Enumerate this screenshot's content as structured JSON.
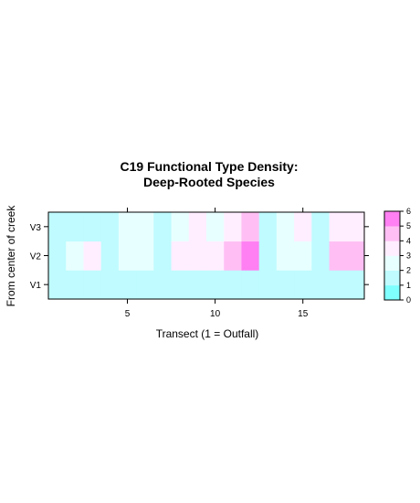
{
  "chart_data": {
    "type": "heatmap",
    "title_lines": [
      "C19 Functional Type Density:",
      "Deep-Rooted Species"
    ],
    "xlabel": "Transect (1 = Outfall)",
    "ylabel": "From center of creek",
    "x": [
      1,
      2,
      3,
      4,
      5,
      6,
      7,
      8,
      9,
      10,
      11,
      12,
      13,
      14,
      15,
      16,
      17,
      18
    ],
    "xlim": [
      0.5,
      18.5
    ],
    "x_ticks": [
      5,
      10,
      15
    ],
    "y_categories": [
      "V1",
      "V2",
      "V3"
    ],
    "values": {
      "V3": [
        1.5,
        1.5,
        1.5,
        1,
        2.5,
        2.5,
        1.5,
        2.5,
        3.5,
        2.5,
        3.5,
        4.5,
        1.5,
        2.5,
        3.5,
        1,
        3.5,
        3.5
      ],
      "V2": [
        1.5,
        2.5,
        3.5,
        1,
        2.5,
        2.5,
        1.5,
        3.5,
        3.5,
        3.5,
        4.5,
        5.5,
        1.5,
        2.5,
        2.5,
        1,
        4.5,
        4.5
      ],
      "V1": [
        1,
        1.5,
        1.5,
        1,
        1,
        1,
        1,
        1.5,
        1,
        1.5,
        1.5,
        1.5,
        1,
        1,
        1,
        1,
        1.5,
        1.5
      ]
    },
    "colorkey": {
      "breaks": [
        0,
        1,
        2,
        3,
        4,
        5,
        6
      ],
      "colors": [
        "#80ffff",
        "#bffbff",
        "#e8ffff",
        "#ffeeff",
        "#ffbff4",
        "#ff80f2"
      ]
    },
    "grid": false
  }
}
